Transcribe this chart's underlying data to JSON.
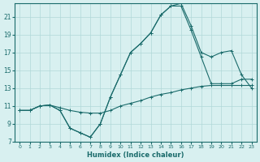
{
  "xlabel": "Humidex (Indice chaleur)",
  "background_color": "#d8f0f0",
  "grid_color": "#b0d8d8",
  "line_color": "#1a6b6b",
  "xlim": [
    -0.5,
    23.5
  ],
  "ylim": [
    7,
    22.5
  ],
  "yticks": [
    7,
    9,
    11,
    13,
    15,
    17,
    19,
    21
  ],
  "xticks": [
    0,
    1,
    2,
    3,
    4,
    5,
    6,
    7,
    8,
    9,
    10,
    11,
    12,
    13,
    14,
    15,
    16,
    17,
    18,
    19,
    20,
    21,
    22,
    23
  ],
  "line1_x": [
    0,
    1,
    2,
    3,
    4,
    5,
    6,
    7,
    8,
    9,
    10,
    11,
    12,
    13,
    14,
    15,
    16,
    17,
    18,
    19,
    20,
    21,
    22,
    23
  ],
  "line1_y": [
    10.5,
    10.5,
    11.0,
    11.1,
    10.8,
    10.5,
    10.3,
    10.2,
    10.2,
    10.5,
    11.0,
    11.3,
    11.6,
    12.0,
    12.3,
    12.5,
    12.8,
    13.0,
    13.2,
    13.3,
    13.3,
    13.3,
    13.3,
    13.3
  ],
  "line2_x": [
    0,
    1,
    2,
    3,
    4,
    5,
    6,
    7,
    8,
    9,
    10,
    11,
    12,
    13,
    14,
    15,
    16,
    17,
    18,
    19,
    20,
    21,
    22,
    23
  ],
  "line2_y": [
    10.5,
    10.5,
    11.0,
    11.1,
    10.5,
    8.5,
    8.0,
    7.5,
    9.0,
    12.0,
    14.5,
    17.0,
    18.0,
    19.2,
    21.2,
    22.2,
    22.2,
    19.5,
    16.5,
    13.5,
    13.5,
    13.5,
    14.0,
    14.0
  ],
  "line3_x": [
    0,
    1,
    2,
    3,
    4,
    5,
    6,
    7,
    8,
    9,
    10,
    11,
    12,
    13,
    14,
    15,
    16,
    17,
    18,
    19,
    20,
    21,
    22,
    23
  ],
  "line3_y": [
    10.5,
    10.5,
    11.0,
    11.1,
    10.5,
    8.5,
    8.0,
    7.5,
    9.0,
    12.0,
    14.5,
    17.0,
    18.0,
    19.2,
    21.2,
    22.2,
    22.5,
    20.0,
    17.0,
    16.5,
    17.0,
    17.2,
    14.5,
    13.0
  ]
}
